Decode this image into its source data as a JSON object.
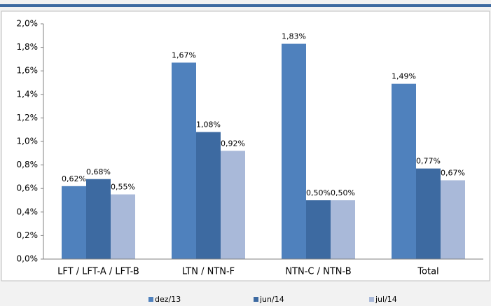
{
  "chart_data": {
    "type": "bar",
    "categories": [
      "LFT / LFT-A / LFT-B",
      "LTN / NTN-F",
      "NTN-C / NTN-B",
      "Total"
    ],
    "series": [
      {
        "name": "dez/13",
        "color": "#4f81bd",
        "values": [
          0.62,
          1.67,
          1.83,
          1.49
        ],
        "value_labels": [
          "0,62%",
          "1,67%",
          "1,83%",
          "1,49%"
        ]
      },
      {
        "name": "jun/14",
        "color": "#3d6aa1",
        "values": [
          0.68,
          1.08,
          0.5,
          0.77
        ],
        "value_labels": [
          "0,68%",
          "1,08%",
          "0,50%",
          "0,77%"
        ]
      },
      {
        "name": "jul/14",
        "color": "#a9b9d9",
        "values": [
          0.55,
          0.92,
          0.5,
          0.67
        ],
        "value_labels": [
          "0,55%",
          "0,92%",
          "0,50%",
          "0,67%"
        ]
      }
    ],
    "ylim": [
      0,
      2.0
    ],
    "yticks": [
      {
        "value": 0,
        "label": "0,0%"
      },
      {
        "value": 0.2,
        "label": "0,2%"
      },
      {
        "value": 0.4,
        "label": "0,4%"
      },
      {
        "value": 0.6,
        "label": "0,6%"
      },
      {
        "value": 0.8,
        "label": "0,8%"
      },
      {
        "value": 1.0,
        "label": "1,0%"
      },
      {
        "value": 1.2,
        "label": "1,2%"
      },
      {
        "value": 1.4,
        "label": "1,4%"
      },
      {
        "value": 1.6,
        "label": "1,6%"
      },
      {
        "value": 1.8,
        "label": "1,8%"
      },
      {
        "value": 2.0,
        "label": "2,0%"
      }
    ],
    "legend": "bottom"
  }
}
